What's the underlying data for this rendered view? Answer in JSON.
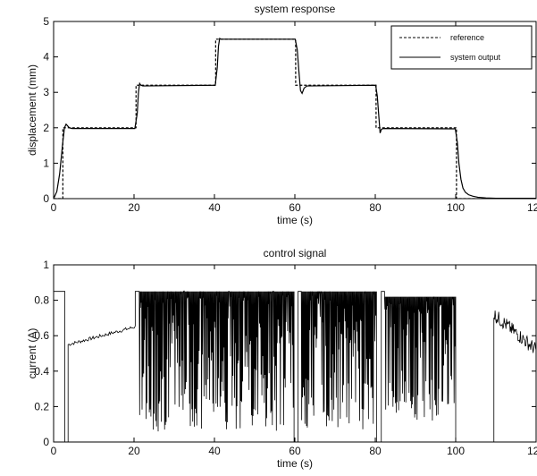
{
  "chart_data": [
    {
      "type": "line",
      "title": "system response",
      "xlabel": "time (s)",
      "ylabel": "displacement (mm)",
      "xlim": [
        0,
        120
      ],
      "ylim": [
        0,
        5
      ],
      "xticks": [
        "0",
        "20",
        "40",
        "60",
        "80",
        "100",
        "120"
      ],
      "yticks": [
        "0",
        "1",
        "2",
        "3",
        "4",
        "5"
      ],
      "legend_position": "top-right",
      "series": [
        {
          "name": "reference",
          "style": "dashed",
          "color": "#000000",
          "x": [
            0,
            2.3,
            2.3,
            20.5,
            20.5,
            40.3,
            40.3,
            60.2,
            60.2,
            80.2,
            80.2,
            100.2,
            100.2,
            120
          ],
          "y": [
            0,
            0,
            2,
            2,
            3.2,
            3.2,
            4.5,
            4.5,
            3.2,
            3.2,
            2,
            2,
            0,
            0
          ]
        },
        {
          "name": "system output",
          "style": "solid",
          "color": "#000000",
          "x": [
            0,
            0.8,
            1.5,
            2.2,
            2.7,
            3.1,
            3.5,
            3.9,
            4.6,
            20.2,
            20.8,
            21.1,
            21.4,
            21.7,
            22.2,
            40.2,
            40.7,
            41.0,
            41.3,
            41.6,
            60.1,
            60.6,
            61.0,
            61.4,
            61.8,
            62.3,
            63.0,
            80.1,
            80.5,
            80.9,
            81.2,
            81.5,
            81.9,
            99.9,
            100.4,
            100.8,
            101.3,
            101.8,
            102.4,
            103.2,
            104.2,
            105.5,
            107.5,
            110.0,
            114.0,
            120.0
          ],
          "y": [
            0,
            0.2,
            0.7,
            1.5,
            2.0,
            2.1,
            2.05,
            2.0,
            1.98,
            1.98,
            2.4,
            3.0,
            3.25,
            3.2,
            3.18,
            3.2,
            3.7,
            4.3,
            4.52,
            4.5,
            4.5,
            4.2,
            3.6,
            3.05,
            2.97,
            3.12,
            3.18,
            3.2,
            2.9,
            2.3,
            1.85,
            1.95,
            1.98,
            1.97,
            1.6,
            1.0,
            0.55,
            0.3,
            0.18,
            0.11,
            0.07,
            0.04,
            0.02,
            0.01,
            0.01,
            0.01
          ]
        }
      ]
    },
    {
      "type": "line",
      "title": "control signal",
      "xlabel": "time (s)",
      "ylabel": "current (A)",
      "xlim": [
        0,
        120
      ],
      "ylim": [
        0,
        1
      ],
      "xticks": [
        "0",
        "20",
        "40",
        "60",
        "80",
        "100",
        "120"
      ],
      "yticks": [
        "0",
        "0.2",
        "0.4",
        "0.6",
        "0.8",
        "1"
      ],
      "series": [
        {
          "name": "",
          "color": "#000000",
          "style": "solid",
          "note_segments": [
            {
              "t0": 0,
              "t1": 2.8,
              "kind": "flat",
              "level": 0.85
            },
            {
              "t0": 2.8,
              "t1": 3.6,
              "kind": "flat",
              "level": 0.0
            },
            {
              "t0": 3.6,
              "t1": 20.3,
              "kind": "ramp",
              "from": 0.55,
              "to": 0.65,
              "noise": 0.02
            },
            {
              "t0": 20.3,
              "t1": 21.3,
              "kind": "flat",
              "level": 0.85
            },
            {
              "t0": 21.3,
              "t1": 59.8,
              "kind": "chatter",
              "high": 0.85,
              "low": 0.17,
              "deep": 0.06
            },
            {
              "t0": 59.8,
              "t1": 60.8,
              "kind": "flat",
              "level": 0.0
            },
            {
              "t0": 60.8,
              "t1": 61.6,
              "kind": "flat",
              "level": 0.85
            },
            {
              "t0": 61.6,
              "t1": 80.3,
              "kind": "chatter",
              "high": 0.85,
              "low": 0.17,
              "deep": 0.07
            },
            {
              "t0": 80.3,
              "t1": 81.5,
              "kind": "flat",
              "level": 0.0
            },
            {
              "t0": 81.5,
              "t1": 82.3,
              "kind": "flat",
              "level": 0.85
            },
            {
              "t0": 82.3,
              "t1": 100.0,
              "kind": "chatter",
              "high": 0.82,
              "low": 0.15,
              "deep": 0.12
            },
            {
              "t0": 100.0,
              "t1": 109.5,
              "kind": "flat",
              "level": 0.0
            },
            {
              "t0": 109.5,
              "t1": 120.0,
              "kind": "decay",
              "from": 0.72,
              "to": 0.52,
              "noise": 0.08
            }
          ]
        }
      ]
    }
  ]
}
